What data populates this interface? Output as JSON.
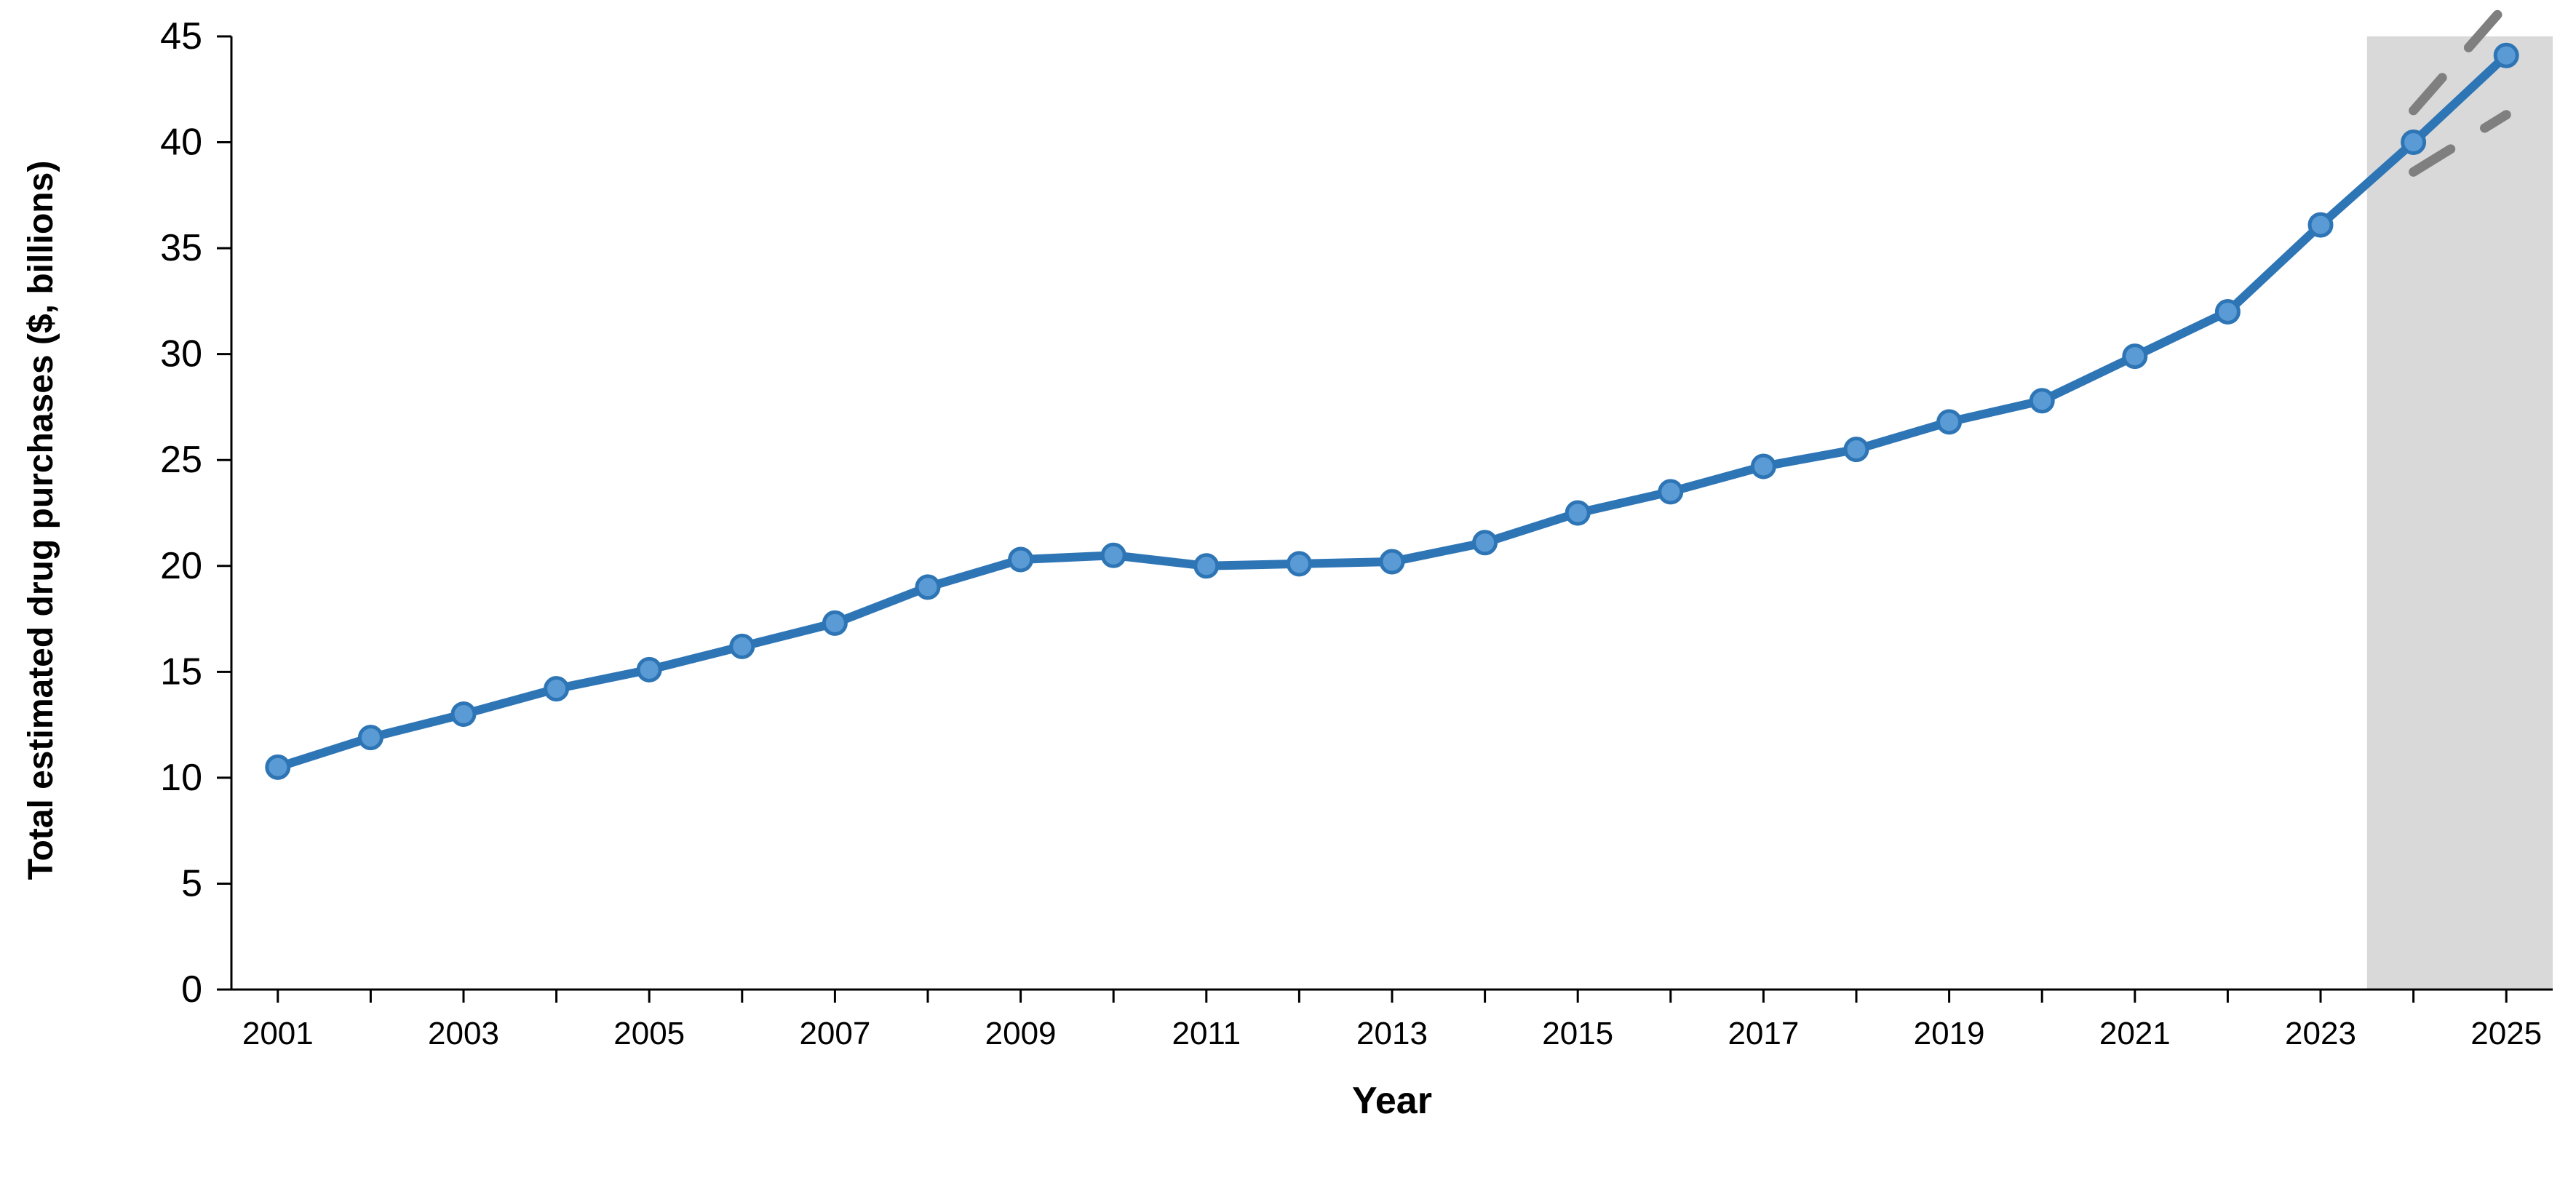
{
  "chart_data": {
    "type": "line",
    "title": "",
    "xlabel": "Year",
    "ylabel": "Total estimated drug purchases ($, billions)",
    "x": [
      2001,
      2002,
      2003,
      2004,
      2005,
      2006,
      2007,
      2008,
      2009,
      2010,
      2011,
      2012,
      2013,
      2014,
      2015,
      2016,
      2017,
      2018,
      2019,
      2020,
      2021,
      2022,
      2023,
      2024,
      2025
    ],
    "series": [
      {
        "values": [
          10.5,
          11.9,
          13.0,
          14.2,
          15.1,
          16.2,
          17.3,
          19.0,
          20.3,
          20.5,
          20.0,
          20.1,
          20.2,
          21.1,
          22.5,
          23.5,
          24.7,
          25.5,
          26.8,
          27.8,
          29.9,
          32.0,
          36.1,
          40.0,
          44.1
        ]
      }
    ],
    "interval": {
      "x": [
        2024,
        2025
      ],
      "upper": [
        41.5,
        46.5
      ],
      "lower": [
        38.6,
        41.3
      ]
    },
    "projection_shading": {
      "from": 2023.5,
      "to": 2025.5
    },
    "xticks": [
      "2001",
      "2003",
      "2005",
      "2007",
      "2009",
      "2011",
      "2013",
      "2015",
      "2017",
      "2019",
      "2021",
      "2023",
      "2025"
    ],
    "yticks": [
      "0",
      "5",
      "10",
      "15",
      "20",
      "25",
      "30",
      "35",
      "40",
      "45"
    ],
    "xlim": [
      2000.5,
      2025.5
    ],
    "ylim": [
      0,
      45
    ],
    "grid": false,
    "legend": "none",
    "colors": {
      "line": "#2e75b6",
      "marker_fill": "#5b9bd5",
      "marker_edge": "#2e75b6",
      "interval": "#7f7f7f",
      "shading": "#d9d9d9",
      "axis": "#000000"
    }
  }
}
